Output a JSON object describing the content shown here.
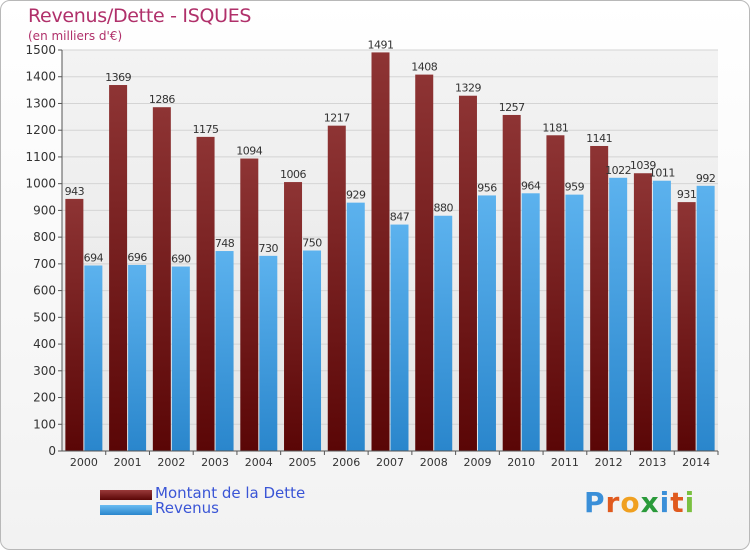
{
  "header": {
    "title": "Revenus/Dette - ISQUES",
    "subtitle": "(en milliers d'€)"
  },
  "brand": {
    "letters": [
      {
        "ch": "P",
        "color": "#3a8fd8"
      },
      {
        "ch": "r",
        "color": "#e05a1e"
      },
      {
        "ch": "o",
        "color": "#f0a020"
      },
      {
        "ch": "x",
        "color": "#2a9a3a"
      },
      {
        "ch": "i",
        "color": "#3a8fd8"
      },
      {
        "ch": "t",
        "color": "#e05a1e"
      },
      {
        "ch": "i",
        "color": "#7ac040"
      }
    ]
  },
  "colors": {
    "dette": "#7a1a1a",
    "revenus": "#4aa0e0"
  },
  "chart_data": {
    "type": "bar",
    "title": "Revenus/Dette - ISQUES",
    "ylabel": "(en milliers d'€)",
    "categories": [
      "2000",
      "2001",
      "2002",
      "2003",
      "2004",
      "2005",
      "2006",
      "2007",
      "2008",
      "2009",
      "2010",
      "2011",
      "2012",
      "2013",
      "2014"
    ],
    "series": [
      {
        "name": "Montant de la Dette",
        "values": [
          943,
          1369,
          1286,
          1175,
          1094,
          1006,
          1217,
          1491,
          1408,
          1329,
          1257,
          1181,
          1141,
          1039,
          931
        ]
      },
      {
        "name": "Revenus",
        "values": [
          694,
          696,
          690,
          748,
          730,
          750,
          929,
          847,
          880,
          956,
          964,
          959,
          1022,
          1011,
          992
        ]
      }
    ],
    "ylim": [
      0,
      1500
    ],
    "yticks": [
      0,
      100,
      200,
      300,
      400,
      500,
      600,
      700,
      800,
      900,
      1000,
      1100,
      1200,
      1300,
      1400,
      1500
    ],
    "grid": true,
    "legend": "bottom-left"
  }
}
